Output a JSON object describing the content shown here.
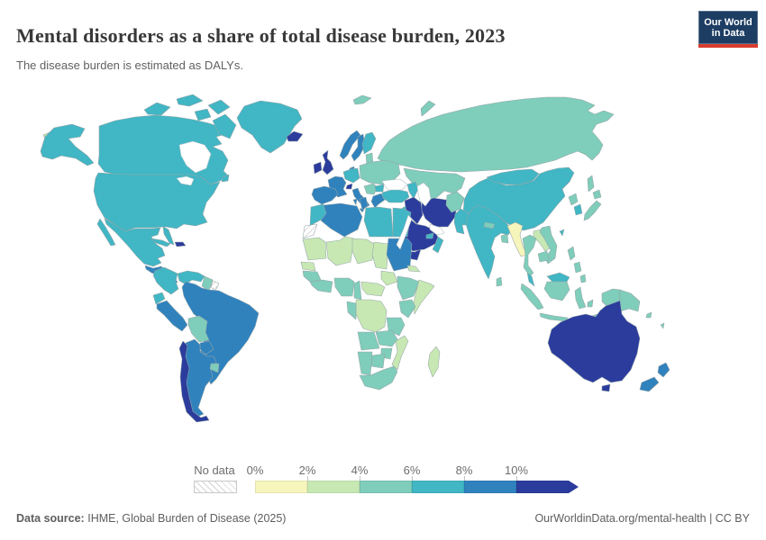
{
  "header": {
    "title": "Mental disorders as a share of total disease burden, 2023",
    "subtitle": "The disease burden is estimated as DALYs."
  },
  "logo": {
    "line1": "Our World",
    "line2": "in Data",
    "bg": "#1d3d63",
    "accent": "#d73c2e"
  },
  "legend": {
    "no_data_label": "No data",
    "tick_labels": [
      "0%",
      "2%",
      "4%",
      "6%",
      "8%",
      "10%"
    ],
    "bin_keys": [
      "0-2",
      "2-4",
      "4-6",
      "6-8",
      "8-10",
      "10+"
    ],
    "palette": {
      "0-2": "#f6f5bb",
      "2-4": "#c7e8b3",
      "4-6": "#7fcdbb",
      "6-8": "#41b6c4",
      "8-10": "#3082bd",
      "10+": "#2b3c9d",
      "no-data": "hatch"
    }
  },
  "map": {
    "ocean": "#ffffff",
    "border_color": "#96a5a7"
  },
  "footer": {
    "source_label": "Data source:",
    "source_text": "IHME, Global Burden of Disease (2025)",
    "right_text": "OurWorldinData.org/mental-health | CC BY"
  },
  "chart_data": {
    "type": "choropleth",
    "title": "Mental disorders as a share of total disease burden, 2023",
    "subtitle": "The disease burden is estimated as DALYs.",
    "unit": "% share of total disease burden (DALYs)",
    "legend_position": "bottom",
    "bins": [
      "0-2",
      "2-4",
      "4-6",
      "6-8",
      "8-10",
      "10+"
    ],
    "values": {
      "united-states": "6-8",
      "canada": "6-8",
      "greenland": "6-8",
      "mexico": "6-8",
      "cuba": "6-8",
      "hispaniola": "10+",
      "central-america": "8-10",
      "bering-islands": "2-4",
      "colombia": "6-8",
      "venezuela": "6-8",
      "ecuador": "6-8",
      "guyana-suriname": "4-6",
      "french-guiana": "no-data",
      "peru": "8-10",
      "brazil": "8-10",
      "bolivia": "4-6",
      "paraguay": "8-10",
      "uruguay": "4-6",
      "argentina": "8-10",
      "chile": "10+",
      "iceland": "10+",
      "ireland": "10+",
      "united-kingdom": "10+",
      "norway": "8-10",
      "sweden": "8-10",
      "finland": "6-8",
      "denmark": "8-10",
      "baltic-states": "4-6",
      "germany-benelux": "6-8",
      "france": "8-10",
      "switzerland": "10+",
      "spain-portugal": "8-10",
      "italy": "8-10",
      "central-eastern-europe": "4-6",
      "balkans": "4-6",
      "bulgaria": "6-8",
      "greece": "8-10",
      "svalbard": "4-6",
      "russia": "4-6",
      "novaya-zemlya": "4-6",
      "sakhalin": "4-6",
      "central-asia": "4-6",
      "caucasus": "6-8",
      "turkey": "6-8",
      "levant": "6-8",
      "syria-iraq": "10+",
      "iran": "10+",
      "saudi-arabia": "10+",
      "yemen": "10+",
      "oman": "6-8",
      "uae-qatar": "6-8",
      "afghanistan": "4-6",
      "pakistan": "6-8",
      "india": "6-8",
      "nepal": "4-6",
      "bangladesh": "4-6",
      "sri-lanka": "4-6",
      "china": "6-8",
      "mongolia": "6-8",
      "taiwan": "6-8",
      "north-korea": "4-6",
      "south-korea": "6-8",
      "japan": "4-6",
      "myanmar": "0-2",
      "thailand": "4-6",
      "laos": "2-4",
      "vietnam": "4-6",
      "cambodia": "4-6",
      "malaysia": "6-8",
      "indonesia": "4-6",
      "philippines": "4-6",
      "papua-new-guinea": "4-6",
      "solomon-islands": "4-6",
      "fiji": "4-6",
      "australia": "10+",
      "new-zealand": "8-10",
      "morocco": "6-8",
      "western-sahara": "no-data",
      "algeria": "8-10",
      "tunisia": "8-10",
      "libya": "6-8",
      "egypt": "6-8",
      "mauritania": "2-4",
      "mali": "2-4",
      "niger": "2-4",
      "chad": "2-4",
      "sudan": "8-10",
      "eritrea-djibouti": "2-4",
      "senegal": "2-4",
      "guinea-region": "4-6",
      "ghana-ivory-coast": "4-6",
      "nigeria": "4-6",
      "cameroon": "4-6",
      "central-african-republic": "2-4",
      "south-sudan": "2-4",
      "ethiopia": "4-6",
      "somalia": "2-4",
      "kenya": "4-6",
      "dr-congo": "2-4",
      "gabon-congo": "4-6",
      "tanzania": "4-6",
      "angola": "4-6",
      "zambia": "4-6",
      "mozambique": "2-4",
      "zimbabwe": "4-6",
      "namibia": "4-6",
      "botswana": "4-6",
      "south-africa": "4-6",
      "madagascar": "2-4"
    }
  }
}
